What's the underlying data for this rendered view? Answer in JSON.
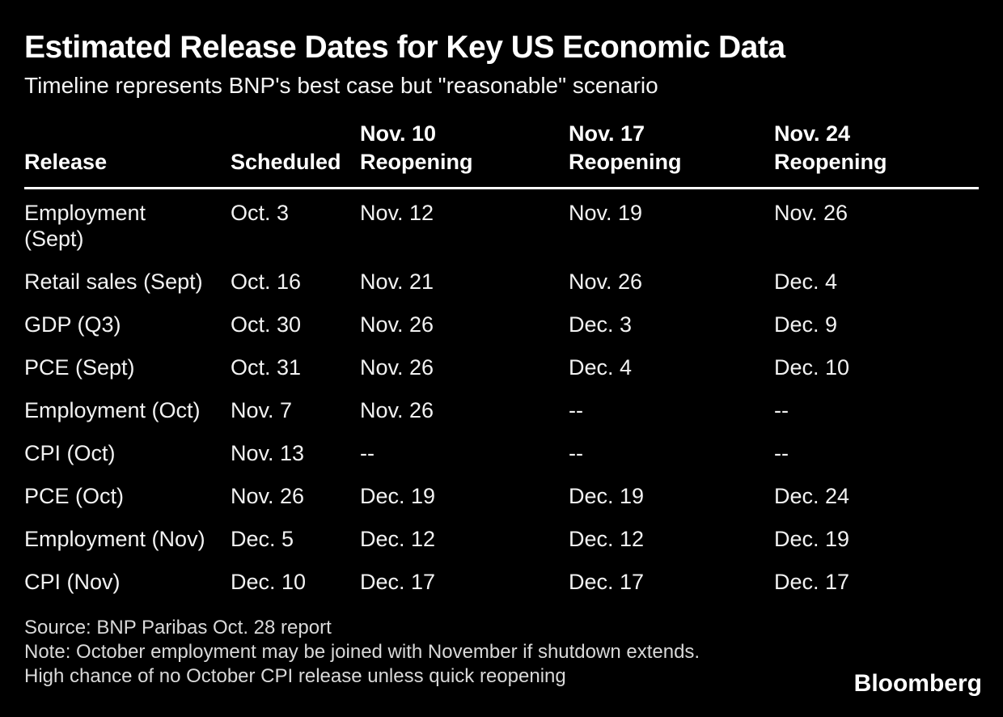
{
  "colors": {
    "background": "#000000",
    "text": "#ffffff",
    "body_text": "#f2f2f2",
    "muted_text": "#d9d9d9",
    "rule": "#ffffff"
  },
  "chart_data": {
    "type": "table",
    "title": "Estimated Release Dates for Key US Economic Data",
    "subtitle": "Timeline represents BNP's best case but \"reasonable\" scenario",
    "columns": [
      "Release",
      "Scheduled",
      "Nov. 10 Reopening",
      "Nov. 17 Reopening",
      "Nov. 24 Reopening"
    ],
    "column_headers": [
      {
        "top": "",
        "bottom": "Release"
      },
      {
        "top": "",
        "bottom": "Scheduled"
      },
      {
        "top": "Nov. 10",
        "bottom": "Reopening"
      },
      {
        "top": "Nov. 17",
        "bottom": "Reopening"
      },
      {
        "top": "Nov. 24",
        "bottom": "Reopening"
      }
    ],
    "empty_marker": "--",
    "rows": [
      {
        "release": "Employment\n(Sept)",
        "cells": [
          "Oct. 3",
          "Nov. 12",
          "Nov. 19",
          "Nov. 26"
        ]
      },
      {
        "release": "Retail sales (Sept)",
        "cells": [
          "Oct. 16",
          "Nov. 21",
          "Nov. 26",
          "Dec. 4"
        ]
      },
      {
        "release": "GDP (Q3)",
        "cells": [
          "Oct. 30",
          "Nov. 26",
          "Dec. 3",
          "Dec. 9"
        ]
      },
      {
        "release": "PCE (Sept)",
        "cells": [
          "Oct. 31",
          "Nov. 26",
          "Dec. 4",
          "Dec. 10"
        ]
      },
      {
        "release": "Employment (Oct)",
        "cells": [
          "Nov. 7",
          "Nov. 26",
          "--",
          "--"
        ]
      },
      {
        "release": "CPI (Oct)",
        "cells": [
          "Nov. 13",
          "--",
          "--",
          "--"
        ]
      },
      {
        "release": "PCE (Oct)",
        "cells": [
          "Nov. 26",
          "Dec. 19",
          "Dec. 19",
          "Dec. 24"
        ]
      },
      {
        "release": "Employment (Nov)",
        "cells": [
          "Dec. 5",
          "Dec. 12",
          "Dec. 12",
          "Dec. 19"
        ]
      },
      {
        "release": "CPI (Nov)",
        "cells": [
          "Dec. 10",
          "Dec. 17",
          "Dec. 17",
          "Dec. 17"
        ]
      }
    ]
  },
  "footer": {
    "source": "Source: BNP Paribas Oct. 28 report",
    "note": "Note: October employment may be joined with November if shutdown extends. High chance of no October CPI release unless quick reopening",
    "brand": "Bloomberg"
  }
}
